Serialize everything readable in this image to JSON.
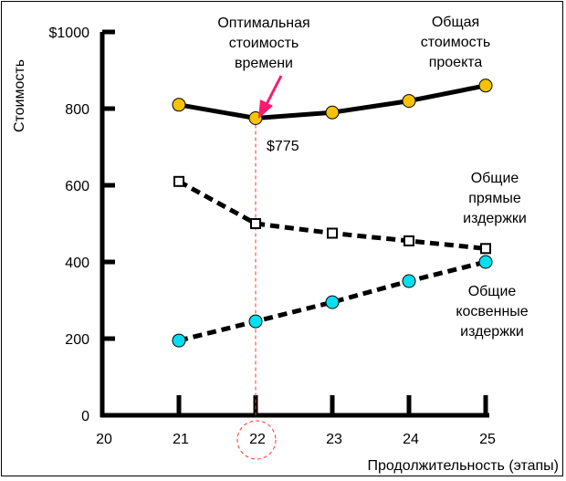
{
  "chart_data": {
    "type": "line",
    "title": "",
    "xlabel": "Продолжительность (этапы)",
    "ylabel": "Стоимость",
    "xlim": [
      20,
      25
    ],
    "ylim": [
      0,
      1000
    ],
    "x_ticks": [
      "20",
      "21",
      "22",
      "23",
      "24",
      "25"
    ],
    "y_ticks": [
      "0",
      "200",
      "400",
      "600",
      "800",
      "$1000"
    ],
    "grid": false,
    "legend": "none",
    "series": [
      {
        "label_lines": [
          "Общая",
          "стоимость",
          "проекта"
        ],
        "x": [
          21,
          22,
          23,
          24,
          25
        ],
        "y": [
          810,
          775,
          790,
          820,
          860
        ],
        "line_style": "solid",
        "marker": "circle",
        "marker_color": "#f5c400"
      },
      {
        "label_lines": [
          "Общие",
          "прямые",
          "издержки"
        ],
        "x": [
          21,
          22,
          23,
          24,
          25
        ],
        "y": [
          610,
          500,
          475,
          455,
          435
        ],
        "line_style": "dashed",
        "marker": "square",
        "marker_color": "#ffffff"
      },
      {
        "label_lines": [
          "Общие",
          "косвенные",
          "издержки"
        ],
        "x": [
          21,
          22,
          23,
          24,
          25
        ],
        "y": [
          195,
          245,
          295,
          350,
          400
        ],
        "line_style": "dashed",
        "marker": "circle",
        "marker_color": "#00e0f0"
      }
    ],
    "annotations": {
      "optimal_lines": [
        "Оптимальная",
        "стоимость",
        "времени"
      ],
      "optimal_x": 22,
      "optimal_value_label": "$775",
      "arrow_color": "#ff1a6e",
      "guide_color": "#ff3333"
    }
  }
}
